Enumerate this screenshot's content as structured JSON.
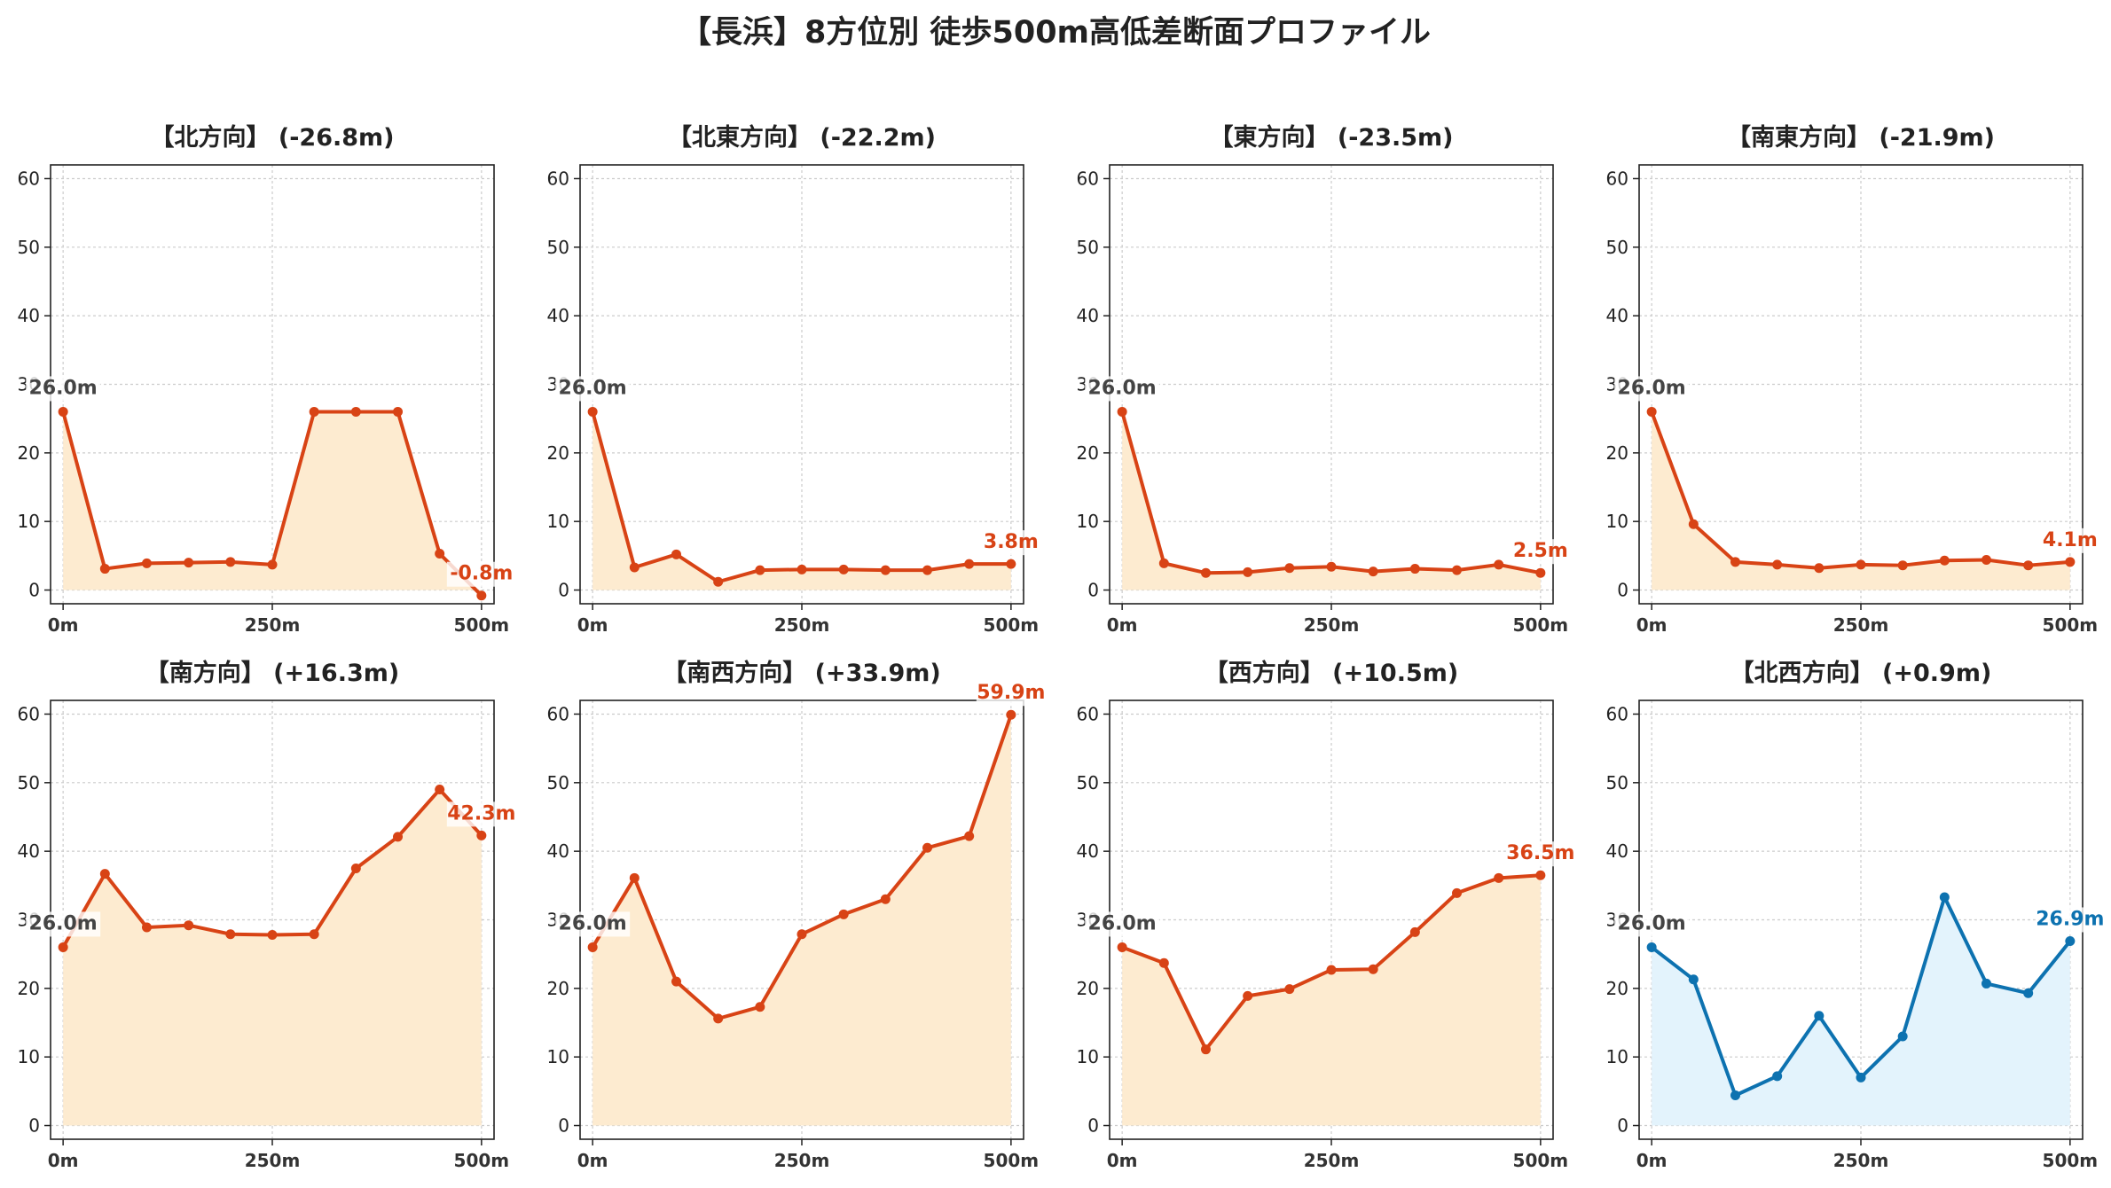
{
  "title": "【長浜】8方位別 徒歩500m高低差断面プロファイル",
  "chart_data": [
    {
      "type": "line",
      "title": "【北方向】 (-26.8m)",
      "x": [
        0,
        50,
        100,
        150,
        200,
        250,
        300,
        350,
        400,
        450,
        500
      ],
      "values": [
        26.0,
        3.1,
        3.9,
        4.0,
        4.1,
        3.7,
        26.0,
        26.0,
        26.0,
        5.3,
        -0.8
      ],
      "start_label": "26.0m",
      "end_label": "-0.8m",
      "color": "#d84315",
      "fill": "#fdebd0",
      "ylim": [
        -2,
        62
      ],
      "yticks": [
        0,
        10,
        20,
        30,
        40,
        50,
        60
      ],
      "xticks": [
        0,
        250,
        500
      ],
      "xtick_labels": [
        "0m",
        "250m",
        "500m"
      ],
      "grid": true
    },
    {
      "type": "line",
      "title": "【北東方向】 (-22.2m)",
      "x": [
        0,
        50,
        100,
        150,
        200,
        250,
        300,
        350,
        400,
        450,
        500
      ],
      "values": [
        26.0,
        3.3,
        5.2,
        1.2,
        2.9,
        3.0,
        3.0,
        2.9,
        2.9,
        3.8,
        3.8
      ],
      "start_label": "26.0m",
      "end_label": "3.8m",
      "color": "#d84315",
      "fill": "#fdebd0",
      "ylim": [
        -2,
        62
      ],
      "yticks": [
        0,
        10,
        20,
        30,
        40,
        50,
        60
      ],
      "xticks": [
        0,
        250,
        500
      ],
      "xtick_labels": [
        "0m",
        "250m",
        "500m"
      ],
      "grid": true
    },
    {
      "type": "line",
      "title": "【東方向】 (-23.5m)",
      "x": [
        0,
        50,
        100,
        150,
        200,
        250,
        300,
        350,
        400,
        450,
        500
      ],
      "values": [
        26.0,
        3.9,
        2.5,
        2.6,
        3.2,
        3.4,
        2.7,
        3.1,
        2.9,
        3.7,
        2.5
      ],
      "start_label": "26.0m",
      "end_label": "2.5m",
      "color": "#d84315",
      "fill": "#fdebd0",
      "ylim": [
        -2,
        62
      ],
      "yticks": [
        0,
        10,
        20,
        30,
        40,
        50,
        60
      ],
      "xticks": [
        0,
        250,
        500
      ],
      "xtick_labels": [
        "0m",
        "250m",
        "500m"
      ],
      "grid": true
    },
    {
      "type": "line",
      "title": "【南東方向】 (-21.9m)",
      "x": [
        0,
        50,
        100,
        150,
        200,
        250,
        300,
        350,
        400,
        450,
        500
      ],
      "values": [
        26.0,
        9.6,
        4.1,
        3.7,
        3.2,
        3.7,
        3.6,
        4.3,
        4.4,
        3.6,
        4.1
      ],
      "start_label": "26.0m",
      "end_label": "4.1m",
      "color": "#d84315",
      "fill": "#fdebd0",
      "ylim": [
        -2,
        62
      ],
      "yticks": [
        0,
        10,
        20,
        30,
        40,
        50,
        60
      ],
      "xticks": [
        0,
        250,
        500
      ],
      "xtick_labels": [
        "0m",
        "250m",
        "500m"
      ],
      "grid": true
    },
    {
      "type": "line",
      "title": "【南方向】 (+16.3m)",
      "x": [
        0,
        50,
        100,
        150,
        200,
        250,
        300,
        350,
        400,
        450,
        500
      ],
      "values": [
        26.0,
        36.7,
        28.9,
        29.2,
        27.9,
        27.8,
        27.9,
        37.5,
        42.1,
        49.0,
        42.3
      ],
      "start_label": "26.0m",
      "end_label": "42.3m",
      "color": "#d84315",
      "fill": "#fdebd0",
      "ylim": [
        -2,
        62
      ],
      "yticks": [
        0,
        10,
        20,
        30,
        40,
        50,
        60
      ],
      "xticks": [
        0,
        250,
        500
      ],
      "xtick_labels": [
        "0m",
        "250m",
        "500m"
      ],
      "grid": true
    },
    {
      "type": "line",
      "title": "【南西方向】 (+33.9m)",
      "x": [
        0,
        50,
        100,
        150,
        200,
        250,
        300,
        350,
        400,
        450,
        500
      ],
      "values": [
        26.0,
        36.1,
        21.0,
        15.6,
        17.3,
        27.9,
        30.8,
        33.0,
        40.5,
        42.2,
        59.9
      ],
      "start_label": "26.0m",
      "end_label": "59.9m",
      "color": "#d84315",
      "fill": "#fdebd0",
      "ylim": [
        -2,
        62
      ],
      "yticks": [
        0,
        10,
        20,
        30,
        40,
        50,
        60
      ],
      "xticks": [
        0,
        250,
        500
      ],
      "xtick_labels": [
        "0m",
        "250m",
        "500m"
      ],
      "grid": true
    },
    {
      "type": "line",
      "title": "【西方向】 (+10.5m)",
      "x": [
        0,
        50,
        100,
        150,
        200,
        250,
        300,
        350,
        400,
        450,
        500
      ],
      "values": [
        26.0,
        23.7,
        11.1,
        18.9,
        19.9,
        22.7,
        22.8,
        28.2,
        33.9,
        36.1,
        36.5
      ],
      "start_label": "26.0m",
      "end_label": "36.5m",
      "color": "#d84315",
      "fill": "#fdebd0",
      "ylim": [
        -2,
        62
      ],
      "yticks": [
        0,
        10,
        20,
        30,
        40,
        50,
        60
      ],
      "xticks": [
        0,
        250,
        500
      ],
      "xtick_labels": [
        "0m",
        "250m",
        "500m"
      ],
      "grid": true
    },
    {
      "type": "line",
      "title": "【北西方向】 (+0.9m)",
      "x": [
        0,
        50,
        100,
        150,
        200,
        250,
        300,
        350,
        400,
        450,
        500
      ],
      "values": [
        26.0,
        21.3,
        4.4,
        7.2,
        16.0,
        7.0,
        13.0,
        33.3,
        20.7,
        19.3,
        26.9
      ],
      "start_label": "26.0m",
      "end_label": "26.9m",
      "color": "#0d72b0",
      "fill": "#e3f3fc",
      "ylim": [
        -2,
        62
      ],
      "yticks": [
        0,
        10,
        20,
        30,
        40,
        50,
        60
      ],
      "xticks": [
        0,
        250,
        500
      ],
      "xtick_labels": [
        "0m",
        "250m",
        "500m"
      ],
      "grid": true
    }
  ]
}
